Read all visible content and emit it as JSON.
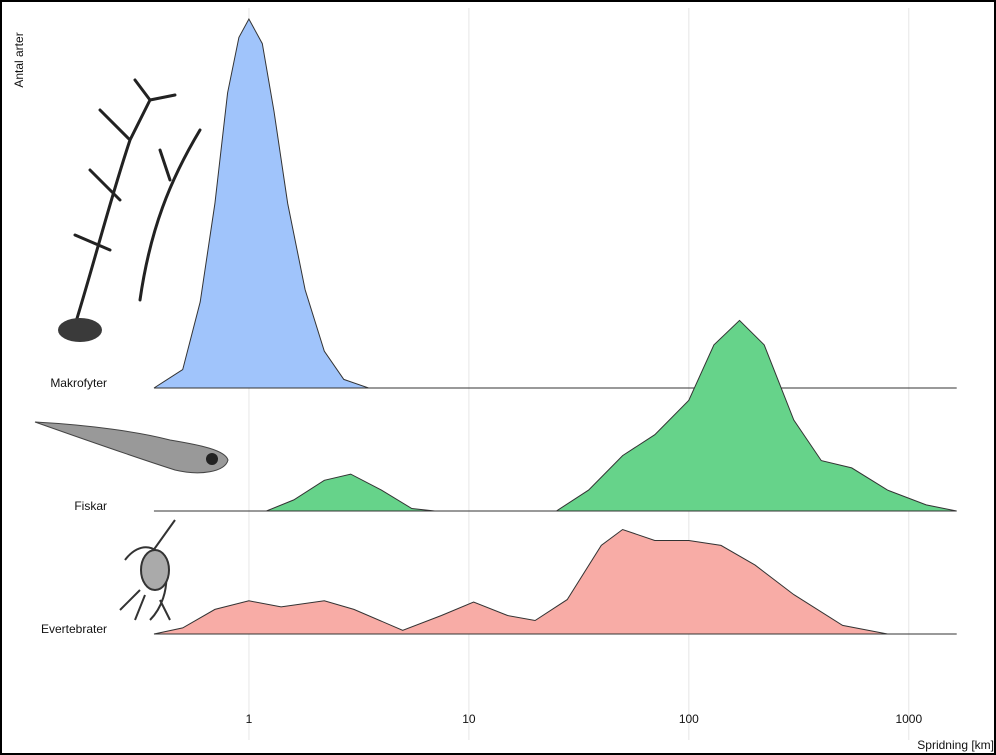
{
  "chart_data": {
    "type": "ridgeline",
    "y_label": "Antal arter",
    "x_label": "Spridning [km]",
    "log_x": true,
    "grid": true,
    "xlim": [
      0.1,
      2000
    ],
    "xticks": [
      1,
      10,
      100,
      1000
    ],
    "series": [
      {
        "name": "Makrofyter",
        "color": "#a0c4fb",
        "x": [
          0.37,
          0.5,
          0.6,
          0.7,
          0.8,
          0.9,
          1.0,
          1.15,
          1.3,
          1.5,
          1.8,
          2.2,
          2.7,
          3.5,
          1650
        ],
        "values": [
          0,
          0.15,
          0.7,
          1.5,
          2.4,
          2.85,
          3.0,
          2.8,
          2.25,
          1.5,
          0.8,
          0.3,
          0.07,
          0,
          0
        ]
      },
      {
        "name": "Fiskar",
        "color": "#66d38a",
        "x": [
          0.37,
          1.2,
          1.6,
          2.2,
          2.9,
          4,
          5.5,
          7,
          25,
          35,
          50,
          70,
          100,
          130,
          170,
          220,
          300,
          400,
          550,
          800,
          1200,
          1650
        ],
        "values": [
          0,
          0,
          0.09,
          0.25,
          0.3,
          0.17,
          0.02,
          0,
          0,
          0.17,
          0.45,
          0.62,
          0.9,
          1.35,
          1.55,
          1.35,
          0.74,
          0.41,
          0.35,
          0.17,
          0.05,
          0
        ]
      },
      {
        "name": "Evertebrater",
        "color": "#f8aca6",
        "x": [
          0.37,
          0.5,
          0.7,
          1,
          1.4,
          2.2,
          3,
          5,
          7.5,
          10.5,
          15,
          20,
          28,
          40,
          50,
          70,
          100,
          140,
          200,
          300,
          500,
          800,
          1650
        ],
        "values": [
          0,
          0.05,
          0.2,
          0.27,
          0.22,
          0.27,
          0.2,
          0.03,
          0.15,
          0.26,
          0.15,
          0.11,
          0.28,
          0.72,
          0.85,
          0.76,
          0.76,
          0.72,
          0.56,
          0.32,
          0.07,
          0,
          0
        ]
      }
    ]
  }
}
